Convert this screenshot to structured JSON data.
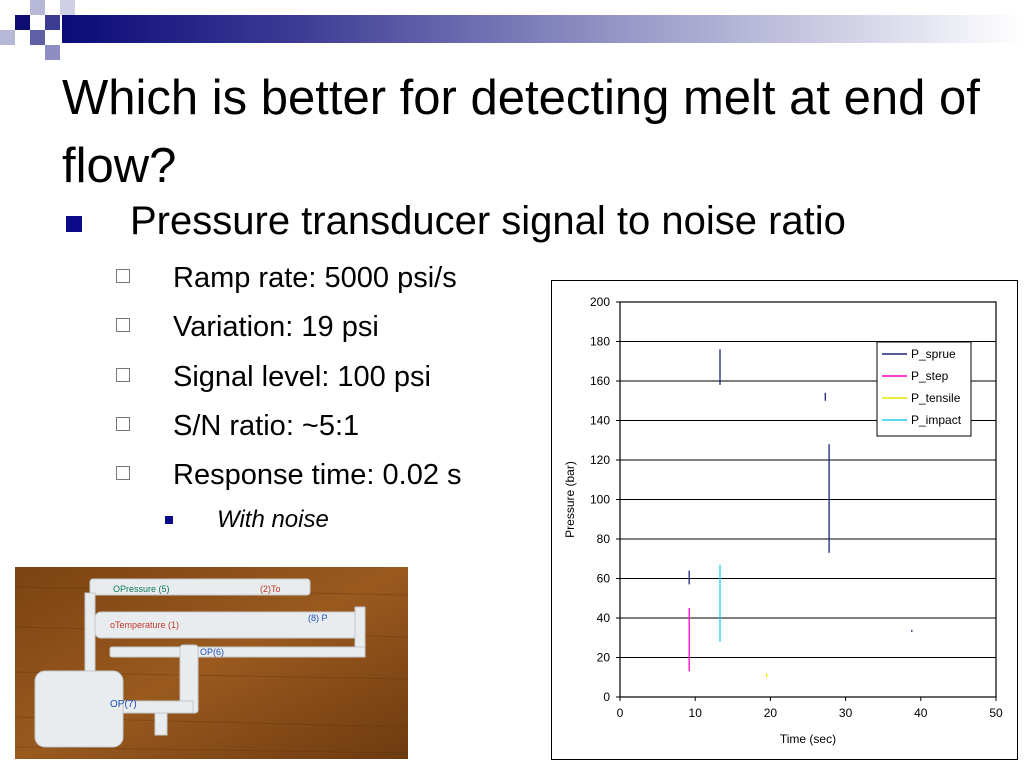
{
  "slide": {
    "title": "Which is better for detecting melt at end of flow?",
    "main_bullet": "Pressure transducer signal to noise ratio",
    "sub_bullets": [
      "Ramp rate: 5000 psi/s",
      "Variation: 19 psi",
      "Signal level: 100 psi",
      "S/N ratio: ~5:1",
      "Response time: 0.02 s"
    ],
    "sub_sub_bullet": "With noise",
    "photo_labels": {
      "sprue": "OPressure (5)",
      "sprue_right": "(2)To",
      "temperature": "oTemperature (1)",
      "step": "(8) P",
      "impact": "OP(7)",
      "tensile": "OP(6)"
    }
  },
  "colors": {
    "bullet": "#0b0b8a",
    "P_sprue": "#1a237e",
    "P_step": "#ff00cc",
    "P_tensile": "#e8e800",
    "P_impact": "#22ccee"
  },
  "chart_data": {
    "type": "line",
    "xlabel": "Time (sec)",
    "ylabel": "Pressure (bar)",
    "xlim": [
      0,
      50
    ],
    "ylim": [
      0,
      200
    ],
    "x_ticks": [
      "0",
      "10",
      "20",
      "30",
      "40",
      "50"
    ],
    "y_ticks": [
      "0",
      "20",
      "40",
      "60",
      "80",
      "100",
      "120",
      "140",
      "160",
      "180",
      "200"
    ],
    "grid": "horizontal",
    "legend_position": "top-right",
    "series": [
      {
        "name": "P_sprue",
        "color": "#1a237e",
        "segments": [
          [
            [
              9.2,
              57
            ],
            [
              9.2,
              64
            ]
          ],
          [
            [
              13.3,
              158
            ],
            [
              13.3,
              176
            ]
          ],
          [
            [
              27.3,
              150
            ],
            [
              27.3,
              154
            ]
          ],
          [
            [
              27.8,
              73
            ],
            [
              27.8,
              128
            ]
          ],
          [
            [
              38.8,
              33
            ],
            [
              38.8,
              34
            ]
          ]
        ]
      },
      {
        "name": "P_step",
        "color": "#ff00cc",
        "segments": [
          [
            [
              9.2,
              13
            ],
            [
              9.2,
              45
            ]
          ]
        ]
      },
      {
        "name": "P_tensile",
        "color": "#e8e800",
        "segments": [
          [
            [
              19.5,
              10
            ],
            [
              19.5,
              12
            ]
          ]
        ]
      },
      {
        "name": "P_impact",
        "color": "#22ccee",
        "segments": [
          [
            [
              13.3,
              28
            ],
            [
              13.3,
              67
            ]
          ]
        ]
      }
    ]
  }
}
